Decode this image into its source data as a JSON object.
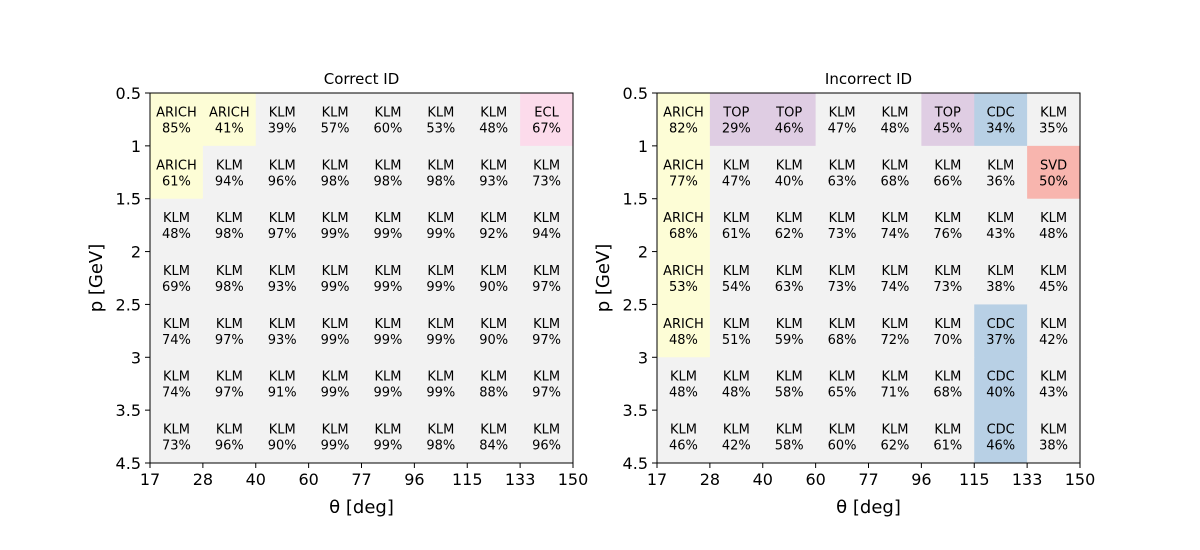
{
  "chart_data": [
    {
      "type": "heatmap",
      "title": "Correct ID",
      "xlabel": "θ [deg]",
      "ylabel": "p [GeV]",
      "x_ticks": [
        "17",
        "28",
        "40",
        "60",
        "77",
        "96",
        "115",
        "133",
        "150"
      ],
      "y_ticks": [
        "0.5",
        "1",
        "1.5",
        "2",
        "2.5",
        "3",
        "3.5",
        "4.5"
      ],
      "rows": [
        [
          {
            "det": "ARICH",
            "pct": "85%"
          },
          {
            "det": "ARICH",
            "pct": "41%"
          },
          {
            "det": "KLM",
            "pct": "39%"
          },
          {
            "det": "KLM",
            "pct": "57%"
          },
          {
            "det": "KLM",
            "pct": "60%"
          },
          {
            "det": "KLM",
            "pct": "53%"
          },
          {
            "det": "KLM",
            "pct": "48%"
          },
          {
            "det": "ECL",
            "pct": "67%"
          }
        ],
        [
          {
            "det": "ARICH",
            "pct": "61%"
          },
          {
            "det": "KLM",
            "pct": "94%"
          },
          {
            "det": "KLM",
            "pct": "96%"
          },
          {
            "det": "KLM",
            "pct": "98%"
          },
          {
            "det": "KLM",
            "pct": "98%"
          },
          {
            "det": "KLM",
            "pct": "98%"
          },
          {
            "det": "KLM",
            "pct": "93%"
          },
          {
            "det": "KLM",
            "pct": "73%"
          }
        ],
        [
          {
            "det": "KLM",
            "pct": "48%"
          },
          {
            "det": "KLM",
            "pct": "98%"
          },
          {
            "det": "KLM",
            "pct": "97%"
          },
          {
            "det": "KLM",
            "pct": "99%"
          },
          {
            "det": "KLM",
            "pct": "99%"
          },
          {
            "det": "KLM",
            "pct": "99%"
          },
          {
            "det": "KLM",
            "pct": "92%"
          },
          {
            "det": "KLM",
            "pct": "94%"
          }
        ],
        [
          {
            "det": "KLM",
            "pct": "69%"
          },
          {
            "det": "KLM",
            "pct": "98%"
          },
          {
            "det": "KLM",
            "pct": "93%"
          },
          {
            "det": "KLM",
            "pct": "99%"
          },
          {
            "det": "KLM",
            "pct": "99%"
          },
          {
            "det": "KLM",
            "pct": "99%"
          },
          {
            "det": "KLM",
            "pct": "90%"
          },
          {
            "det": "KLM",
            "pct": "97%"
          }
        ],
        [
          {
            "det": "KLM",
            "pct": "74%"
          },
          {
            "det": "KLM",
            "pct": "97%"
          },
          {
            "det": "KLM",
            "pct": "93%"
          },
          {
            "det": "KLM",
            "pct": "99%"
          },
          {
            "det": "KLM",
            "pct": "99%"
          },
          {
            "det": "KLM",
            "pct": "99%"
          },
          {
            "det": "KLM",
            "pct": "90%"
          },
          {
            "det": "KLM",
            "pct": "97%"
          }
        ],
        [
          {
            "det": "KLM",
            "pct": "74%"
          },
          {
            "det": "KLM",
            "pct": "97%"
          },
          {
            "det": "KLM",
            "pct": "91%"
          },
          {
            "det": "KLM",
            "pct": "99%"
          },
          {
            "det": "KLM",
            "pct": "99%"
          },
          {
            "det": "KLM",
            "pct": "99%"
          },
          {
            "det": "KLM",
            "pct": "88%"
          },
          {
            "det": "KLM",
            "pct": "97%"
          }
        ],
        [
          {
            "det": "KLM",
            "pct": "73%"
          },
          {
            "det": "KLM",
            "pct": "96%"
          },
          {
            "det": "KLM",
            "pct": "90%"
          },
          {
            "det": "KLM",
            "pct": "99%"
          },
          {
            "det": "KLM",
            "pct": "99%"
          },
          {
            "det": "KLM",
            "pct": "98%"
          },
          {
            "det": "KLM",
            "pct": "84%"
          },
          {
            "det": "KLM",
            "pct": "96%"
          }
        ]
      ]
    },
    {
      "type": "heatmap",
      "title": "Incorrect ID",
      "xlabel": "θ [deg]",
      "ylabel": "p [GeV]",
      "x_ticks": [
        "17",
        "28",
        "40",
        "60",
        "77",
        "96",
        "115",
        "133",
        "150"
      ],
      "y_ticks": [
        "0.5",
        "1",
        "1.5",
        "2",
        "2.5",
        "3",
        "3.5",
        "4.5"
      ],
      "rows": [
        [
          {
            "det": "ARICH",
            "pct": "82%"
          },
          {
            "det": "TOP",
            "pct": "29%"
          },
          {
            "det": "TOP",
            "pct": "46%"
          },
          {
            "det": "KLM",
            "pct": "47%"
          },
          {
            "det": "KLM",
            "pct": "48%"
          },
          {
            "det": "TOP",
            "pct": "45%"
          },
          {
            "det": "CDC",
            "pct": "34%"
          },
          {
            "det": "KLM",
            "pct": "35%"
          }
        ],
        [
          {
            "det": "ARICH",
            "pct": "77%"
          },
          {
            "det": "KLM",
            "pct": "47%"
          },
          {
            "det": "KLM",
            "pct": "40%"
          },
          {
            "det": "KLM",
            "pct": "63%"
          },
          {
            "det": "KLM",
            "pct": "68%"
          },
          {
            "det": "KLM",
            "pct": "66%"
          },
          {
            "det": "KLM",
            "pct": "36%"
          },
          {
            "det": "SVD",
            "pct": "50%"
          }
        ],
        [
          {
            "det": "ARICH",
            "pct": "68%"
          },
          {
            "det": "KLM",
            "pct": "61%"
          },
          {
            "det": "KLM",
            "pct": "62%"
          },
          {
            "det": "KLM",
            "pct": "73%"
          },
          {
            "det": "KLM",
            "pct": "74%"
          },
          {
            "det": "KLM",
            "pct": "76%"
          },
          {
            "det": "KLM",
            "pct": "43%"
          },
          {
            "det": "KLM",
            "pct": "48%"
          }
        ],
        [
          {
            "det": "ARICH",
            "pct": "53%"
          },
          {
            "det": "KLM",
            "pct": "54%"
          },
          {
            "det": "KLM",
            "pct": "63%"
          },
          {
            "det": "KLM",
            "pct": "73%"
          },
          {
            "det": "KLM",
            "pct": "74%"
          },
          {
            "det": "KLM",
            "pct": "73%"
          },
          {
            "det": "KLM",
            "pct": "38%"
          },
          {
            "det": "KLM",
            "pct": "45%"
          }
        ],
        [
          {
            "det": "ARICH",
            "pct": "48%"
          },
          {
            "det": "KLM",
            "pct": "51%"
          },
          {
            "det": "KLM",
            "pct": "59%"
          },
          {
            "det": "KLM",
            "pct": "68%"
          },
          {
            "det": "KLM",
            "pct": "72%"
          },
          {
            "det": "KLM",
            "pct": "70%"
          },
          {
            "det": "CDC",
            "pct": "37%"
          },
          {
            "det": "KLM",
            "pct": "42%"
          }
        ],
        [
          {
            "det": "KLM",
            "pct": "48%"
          },
          {
            "det": "KLM",
            "pct": "48%"
          },
          {
            "det": "KLM",
            "pct": "58%"
          },
          {
            "det": "KLM",
            "pct": "65%"
          },
          {
            "det": "KLM",
            "pct": "71%"
          },
          {
            "det": "KLM",
            "pct": "68%"
          },
          {
            "det": "CDC",
            "pct": "40%"
          },
          {
            "det": "KLM",
            "pct": "43%"
          }
        ],
        [
          {
            "det": "KLM",
            "pct": "46%"
          },
          {
            "det": "KLM",
            "pct": "42%"
          },
          {
            "det": "KLM",
            "pct": "58%"
          },
          {
            "det": "KLM",
            "pct": "60%"
          },
          {
            "det": "KLM",
            "pct": "62%"
          },
          {
            "det": "KLM",
            "pct": "61%"
          },
          {
            "det": "CDC",
            "pct": "46%"
          },
          {
            "det": "KLM",
            "pct": "38%"
          }
        ]
      ]
    }
  ],
  "detector_colors": {
    "ARICH": "#fdfdd6",
    "TOP": "#dfcde3",
    "KLM": "#f2f2f2",
    "CDC": "#b8d0e5",
    "ECL": "#fcdbeb",
    "SVD": "#f8b5ae"
  }
}
